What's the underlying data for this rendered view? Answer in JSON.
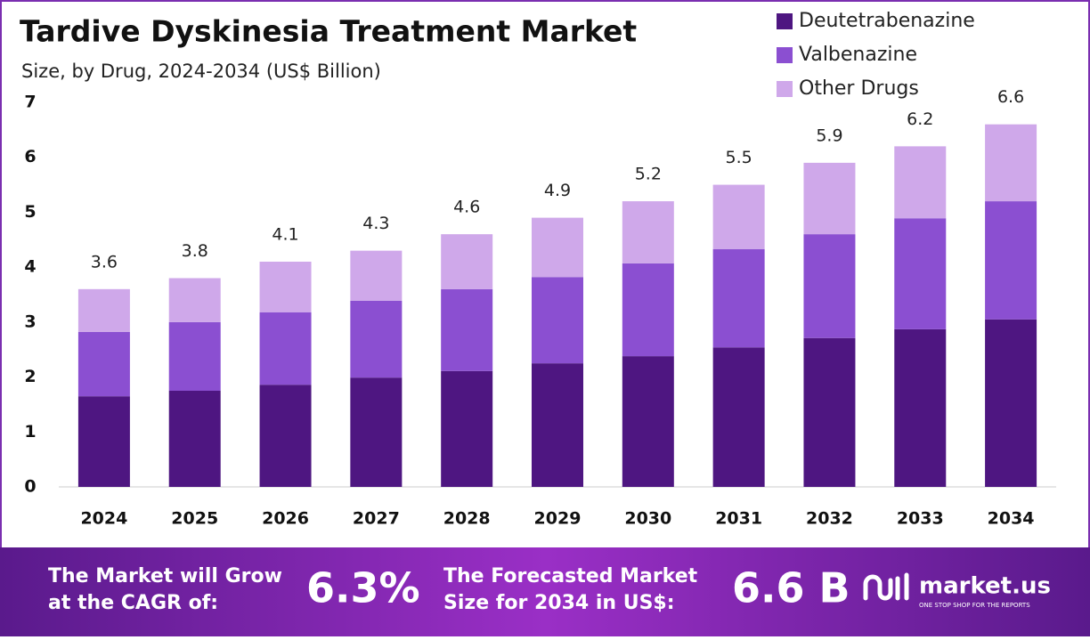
{
  "chart_data": {
    "type": "stacked_bar",
    "title": "Tardive Dyskinesia Treatment Market",
    "subtitle": "Size, by Drug, 2024-2034 (US$ Billion)",
    "categories": [
      "2024",
      "2025",
      "2026",
      "2027",
      "2028",
      "2029",
      "2030",
      "2031",
      "2032",
      "2033",
      "2034"
    ],
    "series": [
      {
        "name": "Deutetrabenazine",
        "color": "#4e1681",
        "values": [
          1.65,
          1.75,
          1.86,
          1.99,
          2.11,
          2.25,
          2.38,
          2.54,
          2.71,
          2.87,
          3.05
        ]
      },
      {
        "name": "Valbenazine",
        "color": "#8b4fd1",
        "values": [
          1.17,
          1.25,
          1.32,
          1.4,
          1.49,
          1.57,
          1.69,
          1.79,
          1.89,
          2.02,
          2.15
        ]
      },
      {
        "name": "Other Drugs",
        "color": "#cfa8ea",
        "values": [
          0.78,
          0.8,
          0.92,
          0.91,
          1.0,
          1.08,
          1.13,
          1.17,
          1.3,
          1.31,
          1.4
        ]
      }
    ],
    "totals": [
      3.6,
      3.8,
      4.1,
      4.3,
      4.6,
      4.9,
      5.2,
      5.5,
      5.9,
      6.2,
      6.6
    ],
    "ylim": [
      0,
      7
    ],
    "yticks": [
      0,
      1,
      2,
      3,
      4,
      5,
      6,
      7
    ],
    "grid": false,
    "legend": "top-right"
  },
  "footer": {
    "cagr_text": [
      "The Market will Grow",
      "at the CAGR of:"
    ],
    "cagr_value": "6.3%",
    "forecast_text": [
      "The Forecasted Market",
      "Size for 2034 in US$:"
    ],
    "forecast_value": "6.6 B",
    "brand": "market.us",
    "tagline": "ONE STOP SHOP FOR THE REPORTS"
  }
}
